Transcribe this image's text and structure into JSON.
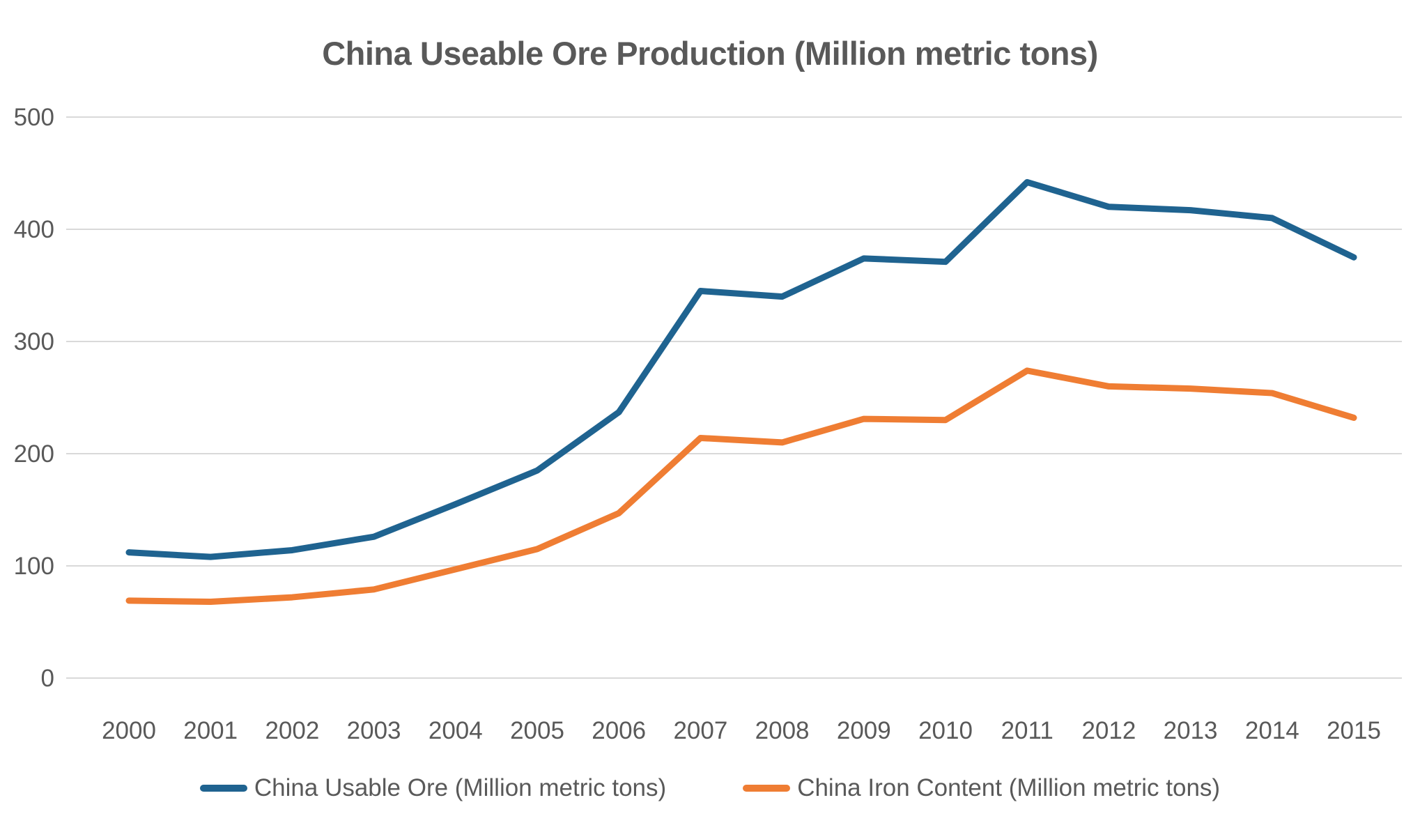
{
  "chart_data": {
    "type": "line",
    "title": "China Useable Ore Production (Million metric tons)",
    "x": [
      "2000",
      "2001",
      "2002",
      "2003",
      "2004",
      "2005",
      "2006",
      "2007",
      "2008",
      "2009",
      "2010",
      "2011",
      "2012",
      "2013",
      "2014",
      "2015"
    ],
    "yticks": [
      0,
      100,
      200,
      300,
      400,
      500
    ],
    "ylim": [
      0,
      500
    ],
    "grid": "horizontal",
    "legend_position": "bottom",
    "text_color": "#595959",
    "gridline_color": "#d9d9d9",
    "series": [
      {
        "name": "China Usable Ore (Million metric tons)",
        "color": "#1f6390",
        "values": [
          112,
          108,
          114,
          126,
          155,
          185,
          237,
          345,
          340,
          374,
          371,
          442,
          420,
          417,
          410,
          375
        ]
      },
      {
        "name": "China Iron Content (Million metric tons)",
        "color": "#ef7d33",
        "values": [
          69,
          68,
          72,
          79,
          97,
          115,
          147,
          214,
          210,
          231,
          230,
          274,
          260,
          258,
          254,
          232
        ]
      }
    ]
  }
}
